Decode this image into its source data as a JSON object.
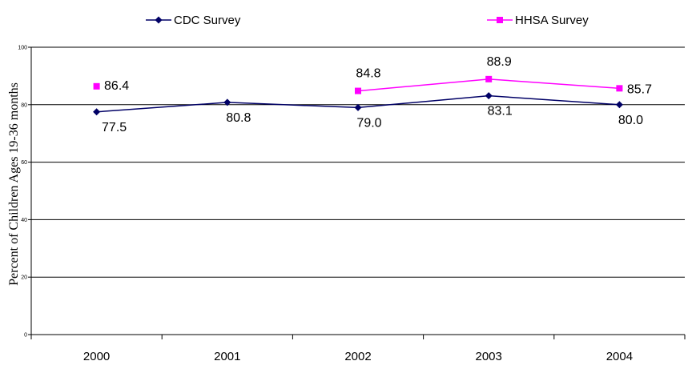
{
  "chart_data": {
    "type": "line",
    "categories": [
      "2000",
      "2001",
      "2002",
      "2003",
      "2004"
    ],
    "ylabel": "Percent of Children Ages 19-36 months",
    "xlabel": "",
    "ylim": [
      0,
      100
    ],
    "y_ticks": [
      "0",
      "20",
      "40",
      "60",
      "80",
      "100"
    ],
    "grid": "horizontal",
    "legend_position": "top",
    "series": [
      {
        "name": "CDC Survey",
        "color": "#000066",
        "marker": "diamond",
        "values": [
          77.5,
          80.8,
          79.0,
          83.1,
          80.0
        ],
        "labels": [
          "77.5",
          "80.8",
          "79.0",
          "83.1",
          "80.0"
        ]
      },
      {
        "name": "HHSA Survey",
        "color": "#ff00ff",
        "marker": "square",
        "values": [
          86.4,
          null,
          84.8,
          88.9,
          85.7
        ],
        "labels": [
          "86.4",
          null,
          "84.8",
          "88.9",
          "85.7"
        ]
      }
    ]
  }
}
